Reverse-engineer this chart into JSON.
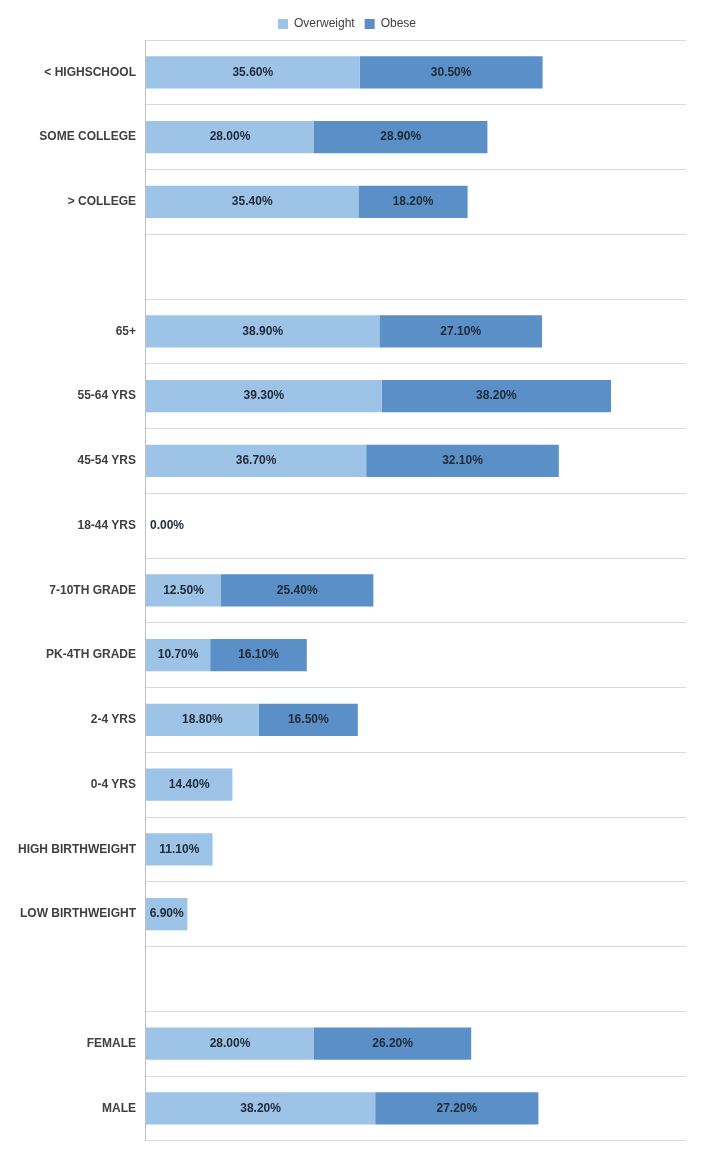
{
  "chart_data": {
    "type": "bar",
    "orientation": "horizontal",
    "stacked": true,
    "categories": [
      "< HIGHSCHOOL",
      "SOME COLLEGE",
      "> COLLEGE",
      null,
      "65+",
      "55-64 YRS",
      "45-54 YRS",
      "18-44 YRS",
      "7-10TH GRADE",
      "PK-4TH GRADE",
      "2-4 YRS",
      "0-4 YRS",
      "HIGH BIRTHWEIGHT",
      "LOW BIRTHWEIGHT",
      null,
      "FEMALE",
      "MALE"
    ],
    "series": [
      {
        "name": "Overweight",
        "color": "#9dc3e6",
        "values": [
          35.6,
          28.0,
          35.4,
          null,
          38.9,
          39.3,
          36.7,
          0.0,
          12.5,
          10.7,
          18.8,
          14.4,
          11.1,
          6.9,
          null,
          28.0,
          38.2
        ],
        "value_labels": [
          "35.60%",
          "28.00%",
          "35.40%",
          null,
          "38.90%",
          "39.30%",
          "36.70%",
          "0.00%",
          "12.50%",
          "10.70%",
          "18.80%",
          "14.40%",
          "11.10%",
          "6.90%",
          null,
          "28.00%",
          "38.20%"
        ]
      },
      {
        "name": "Obese",
        "color": "#5b8fc7",
        "values": [
          30.5,
          28.9,
          18.2,
          null,
          27.1,
          38.2,
          32.1,
          null,
          25.4,
          16.1,
          16.5,
          null,
          null,
          null,
          null,
          26.2,
          27.2
        ],
        "value_labels": [
          "30.50%",
          "28.90%",
          "18.20%",
          null,
          "27.10%",
          "38.20%",
          "32.10%",
          null,
          "25.40%",
          "16.10%",
          "16.50%",
          null,
          null,
          null,
          null,
          "26.20%",
          "27.20%"
        ]
      }
    ],
    "xlim": [
      0,
      90
    ],
    "grid": "y",
    "legend": "top",
    "tick_labels": "y"
  }
}
